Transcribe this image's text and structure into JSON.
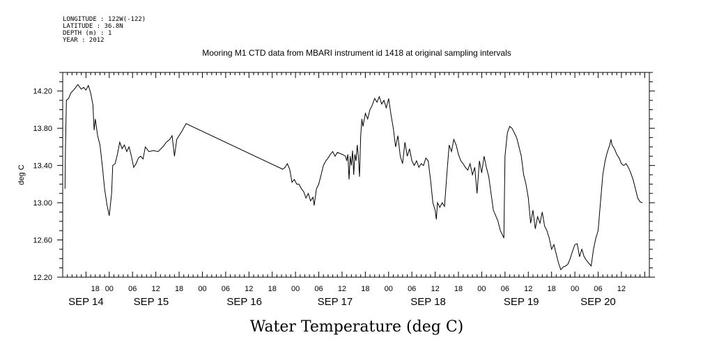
{
  "header": {
    "longitude": "LONGITUDE : 122W(-122)",
    "latitude": "LATITUDE : 36.8N",
    "depth": "DEPTH (m) : 1",
    "year": "YEAR : 2012"
  },
  "chart_data": {
    "type": "line",
    "title": "Mooring M1 CTD data from MBARI instrument id 1418 at original sampling intervals",
    "xlabel": "",
    "ylabel": "deg C",
    "caption": "Water Temperature (deg C)",
    "x_unit": "hours since Sep 14 00:00, 2012",
    "xlim": [
      -20,
      232
    ],
    "ylim": [
      12.2,
      14.4
    ],
    "y_ticks": [
      12.2,
      12.6,
      13.0,
      13.4,
      13.8,
      14.2
    ],
    "y_tick_labels": [
      "12.20",
      "12.60",
      "13.00",
      "13.40",
      "13.80",
      "14.20"
    ],
    "x_hour_ticks": [
      -6,
      0,
      10,
      20,
      30,
      40,
      50,
      60,
      70,
      80,
      90,
      100,
      110,
      120,
      130,
      140,
      150,
      160,
      170,
      180,
      190,
      200,
      210,
      220
    ],
    "x_hour_labels": [
      "18",
      "00",
      "06",
      "12",
      "18",
      "00",
      "06",
      "12",
      "18",
      "00",
      "06",
      "12",
      "18",
      "00",
      "06",
      "12",
      "18",
      "00",
      "06",
      "12",
      "18",
      "00",
      "06",
      "12"
    ],
    "day_labels": [
      {
        "label": "SEP 14",
        "at": -10
      },
      {
        "label": "SEP 15",
        "at": 18
      },
      {
        "label": "SEP 16",
        "at": 58
      },
      {
        "label": "SEP 17",
        "at": 97
      },
      {
        "label": "SEP 18",
        "at": 137
      },
      {
        "label": "SEP 19",
        "at": 177
      },
      {
        "label": "SEP 20",
        "at": 210
      }
    ],
    "series": [
      {
        "color": "#000000",
        "points": [
          [
            -19,
            13.15
          ],
          [
            -18.8,
            13.6
          ],
          [
            -18.4,
            14.1
          ],
          [
            -17.5,
            14.12
          ],
          [
            -16.5,
            14.18
          ],
          [
            -15,
            14.22
          ],
          [
            -13.5,
            14.27
          ],
          [
            -12,
            14.22
          ],
          [
            -11,
            14.24
          ],
          [
            -10,
            14.21
          ],
          [
            -9,
            14.26
          ],
          [
            -8,
            14.18
          ],
          [
            -7,
            14.05
          ],
          [
            -6.5,
            13.78
          ],
          [
            -6,
            13.9
          ],
          [
            -5,
            13.72
          ],
          [
            -4,
            13.62
          ],
          [
            -3,
            13.4
          ],
          [
            -2,
            13.15
          ],
          [
            -1,
            12.98
          ],
          [
            0,
            12.86
          ],
          [
            1,
            13.1
          ],
          [
            1.5,
            13.4
          ],
          [
            2.5,
            13.42
          ],
          [
            3.5,
            13.52
          ],
          [
            4.5,
            13.65
          ],
          [
            5.5,
            13.58
          ],
          [
            6.5,
            13.62
          ],
          [
            7.5,
            13.55
          ],
          [
            8.5,
            13.6
          ],
          [
            9.5,
            13.5
          ],
          [
            10.5,
            13.38
          ],
          [
            11.5,
            13.42
          ],
          [
            12.5,
            13.48
          ],
          [
            13.5,
            13.5
          ],
          [
            14.5,
            13.47
          ],
          [
            15.5,
            13.6
          ],
          [
            17,
            13.55
          ],
          [
            19,
            13.56
          ],
          [
            21,
            13.55
          ],
          [
            23,
            13.6
          ],
          [
            24.5,
            13.65
          ],
          [
            26,
            13.68
          ],
          [
            27,
            13.72
          ],
          [
            28,
            13.5
          ],
          [
            29,
            13.68
          ],
          [
            31,
            13.76
          ],
          [
            33,
            13.85
          ],
          [
            74.5,
            13.36
          ],
          [
            75.5,
            13.38
          ],
          [
            76.5,
            13.42
          ],
          [
            77.5,
            13.36
          ],
          [
            78.5,
            13.22
          ],
          [
            79.5,
            13.25
          ],
          [
            80.5,
            13.2
          ],
          [
            81.5,
            13.2
          ],
          [
            82.5,
            13.15
          ],
          [
            83.5,
            13.12
          ],
          [
            84.5,
            13.05
          ],
          [
            85.5,
            13.1
          ],
          [
            86.5,
            13.02
          ],
          [
            87.5,
            13.06
          ],
          [
            88,
            12.97
          ],
          [
            89,
            13.15
          ],
          [
            90,
            13.2
          ],
          [
            91,
            13.3
          ],
          [
            92,
            13.4
          ],
          [
            93,
            13.45
          ],
          [
            94,
            13.48
          ],
          [
            95,
            13.52
          ],
          [
            96,
            13.55
          ],
          [
            97,
            13.5
          ],
          [
            98,
            13.54
          ],
          [
            100,
            13.52
          ],
          [
            101.5,
            13.5
          ],
          [
            102,
            13.45
          ],
          [
            102.5,
            13.52
          ],
          [
            103,
            13.25
          ],
          [
            103.5,
            13.5
          ],
          [
            104,
            13.4
          ],
          [
            104.5,
            13.56
          ],
          [
            105,
            13.3
          ],
          [
            105.5,
            13.52
          ],
          [
            106,
            13.45
          ],
          [
            106.5,
            13.62
          ],
          [
            107,
            13.5
          ],
          [
            107.5,
            13.28
          ],
          [
            108,
            13.72
          ],
          [
            108.5,
            13.9
          ],
          [
            109,
            13.82
          ],
          [
            110,
            13.96
          ],
          [
            111,
            13.9
          ],
          [
            112,
            14.0
          ],
          [
            113,
            14.05
          ],
          [
            114,
            14.12
          ],
          [
            115,
            14.08
          ],
          [
            116,
            14.14
          ],
          [
            117,
            14.06
          ],
          [
            118,
            14.1
          ],
          [
            119,
            14.02
          ],
          [
            120,
            14.12
          ],
          [
            121,
            13.95
          ],
          [
            122,
            13.8
          ],
          [
            123,
            13.6
          ],
          [
            124,
            13.72
          ],
          [
            125,
            13.5
          ],
          [
            126,
            13.42
          ],
          [
            127,
            13.65
          ],
          [
            128,
            13.5
          ],
          [
            129,
            13.58
          ],
          [
            130,
            13.45
          ],
          [
            131,
            13.4
          ],
          [
            132,
            13.45
          ],
          [
            133,
            13.38
          ],
          [
            134,
            13.42
          ],
          [
            135,
            13.4
          ],
          [
            136,
            13.48
          ],
          [
            137,
            13.45
          ],
          [
            138,
            13.25
          ],
          [
            139,
            13.0
          ],
          [
            140,
            12.92
          ],
          [
            140.5,
            12.82
          ],
          [
            141,
            13.0
          ],
          [
            142,
            12.95
          ],
          [
            143,
            13.0
          ],
          [
            144,
            12.96
          ],
          [
            145,
            13.3
          ],
          [
            146,
            13.62
          ],
          [
            147,
            13.55
          ],
          [
            148,
            13.68
          ],
          [
            149,
            13.62
          ],
          [
            150,
            13.52
          ],
          [
            151,
            13.45
          ],
          [
            152,
            13.42
          ],
          [
            153,
            13.38
          ],
          [
            154,
            13.35
          ],
          [
            155,
            13.42
          ],
          [
            156,
            13.3
          ],
          [
            157,
            13.38
          ],
          [
            158,
            13.1
          ],
          [
            159,
            13.45
          ],
          [
            160,
            13.32
          ],
          [
            161,
            13.5
          ],
          [
            162,
            13.38
          ],
          [
            163,
            13.28
          ],
          [
            164,
            13.1
          ],
          [
            165,
            12.92
          ],
          [
            166,
            12.86
          ],
          [
            167,
            12.8
          ],
          [
            168,
            12.7
          ],
          [
            169,
            12.65
          ],
          [
            169.5,
            12.62
          ],
          [
            170,
            13.5
          ],
          [
            171,
            13.75
          ],
          [
            172,
            13.82
          ],
          [
            173,
            13.8
          ],
          [
            174,
            13.75
          ],
          [
            175,
            13.7
          ],
          [
            176,
            13.6
          ],
          [
            177,
            13.5
          ],
          [
            178,
            13.3
          ],
          [
            179,
            13.2
          ],
          [
            180,
            13.05
          ],
          [
            181,
            12.78
          ],
          [
            182,
            12.92
          ],
          [
            183,
            12.72
          ],
          [
            184,
            12.85
          ],
          [
            185,
            12.78
          ],
          [
            186,
            12.9
          ],
          [
            187,
            12.75
          ],
          [
            188,
            12.7
          ],
          [
            189,
            12.62
          ],
          [
            190,
            12.5
          ],
          [
            191,
            12.55
          ],
          [
            192,
            12.45
          ],
          [
            193,
            12.35
          ],
          [
            194,
            12.28
          ],
          [
            195,
            12.31
          ],
          [
            196,
            12.32
          ],
          [
            197,
            12.34
          ],
          [
            198,
            12.4
          ],
          [
            199,
            12.48
          ],
          [
            200,
            12.55
          ],
          [
            201,
            12.56
          ],
          [
            202,
            12.42
          ],
          [
            203,
            12.5
          ],
          [
            204,
            12.42
          ],
          [
            205,
            12.38
          ],
          [
            206,
            12.35
          ],
          [
            207,
            12.32
          ],
          [
            208,
            12.5
          ],
          [
            209,
            12.62
          ],
          [
            210,
            12.7
          ],
          [
            211,
            13.0
          ],
          [
            212,
            13.3
          ],
          [
            213,
            13.45
          ],
          [
            214,
            13.55
          ],
          [
            215,
            13.62
          ],
          [
            215.5,
            13.68
          ],
          [
            216,
            13.62
          ],
          [
            217,
            13.58
          ],
          [
            218,
            13.52
          ],
          [
            219,
            13.48
          ],
          [
            220,
            13.42
          ],
          [
            221,
            13.4
          ],
          [
            222,
            13.42
          ],
          [
            223,
            13.38
          ],
          [
            224,
            13.32
          ],
          [
            225,
            13.25
          ],
          [
            226,
            13.15
          ],
          [
            227,
            13.05
          ],
          [
            228,
            13.01
          ],
          [
            229,
            13.0
          ]
        ]
      }
    ]
  }
}
